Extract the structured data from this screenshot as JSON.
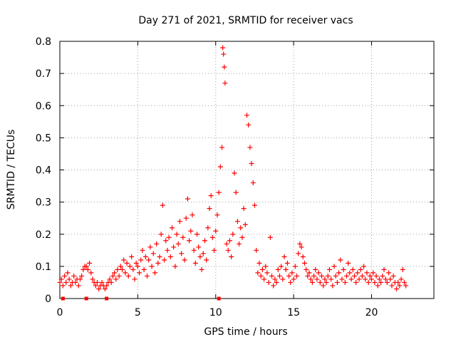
{
  "chart_data": {
    "type": "scatter",
    "title": "Day 271 of 2021, SRMTID for receiver vacs",
    "xlabel": "GPS time / hours",
    "ylabel": "SRMTID / TECUs",
    "xlim": [
      0,
      24
    ],
    "ylim": [
      0,
      0.8
    ],
    "xticks": [
      0,
      5,
      10,
      15,
      20
    ],
    "yticks": [
      0,
      0.1,
      0.2,
      0.3,
      0.4,
      0.5,
      0.6,
      0.7,
      0.8
    ],
    "xtick_labels": [
      "0",
      "5",
      "10",
      "15",
      "20"
    ],
    "ytick_labels": [
      "0",
      "0.1",
      "0.2",
      "0.3",
      "0.4",
      "0.5",
      "0.6",
      "0.7",
      "0.8"
    ],
    "grid": true,
    "marker": "+",
    "color": "#ff0000",
    "series": [
      {
        "name": "SRMTID",
        "points": [
          [
            0.0,
            0.05
          ],
          [
            0.1,
            0.06
          ],
          [
            0.2,
            0.04
          ],
          [
            0.3,
            0.07
          ],
          [
            0.4,
            0.05
          ],
          [
            0.5,
            0.08
          ],
          [
            0.6,
            0.06
          ],
          [
            0.7,
            0.04
          ],
          [
            0.8,
            0.05
          ],
          [
            0.9,
            0.07
          ],
          [
            1.0,
            0.05
          ],
          [
            1.1,
            0.06
          ],
          [
            1.2,
            0.04
          ],
          [
            1.3,
            0.06
          ],
          [
            1.4,
            0.07
          ],
          [
            1.5,
            0.09
          ],
          [
            1.6,
            0.1
          ],
          [
            1.7,
            0.1
          ],
          [
            1.8,
            0.09
          ],
          [
            1.9,
            0.11
          ],
          [
            2.0,
            0.08
          ],
          [
            2.1,
            0.06
          ],
          [
            2.2,
            0.05
          ],
          [
            2.3,
            0.04
          ],
          [
            2.4,
            0.05
          ],
          [
            2.5,
            0.03
          ],
          [
            2.6,
            0.04
          ],
          [
            2.7,
            0.05
          ],
          [
            2.8,
            0.04
          ],
          [
            2.9,
            0.03
          ],
          [
            3.0,
            0.04
          ],
          [
            3.1,
            0.05
          ],
          [
            3.2,
            0.06
          ],
          [
            3.3,
            0.05
          ],
          [
            3.4,
            0.07
          ],
          [
            3.5,
            0.08
          ],
          [
            3.6,
            0.06
          ],
          [
            3.7,
            0.09
          ],
          [
            3.8,
            0.07
          ],
          [
            3.9,
            0.1
          ],
          [
            4.0,
            0.09
          ],
          [
            4.1,
            0.12
          ],
          [
            4.2,
            0.08
          ],
          [
            4.3,
            0.11
          ],
          [
            4.4,
            0.07
          ],
          [
            4.5,
            0.1
          ],
          [
            4.6,
            0.13
          ],
          [
            4.7,
            0.09
          ],
          [
            4.8,
            0.06
          ],
          [
            4.9,
            0.11
          ],
          [
            5.0,
            0.1
          ],
          [
            5.1,
            0.08
          ],
          [
            5.2,
            0.12
          ],
          [
            5.3,
            0.15
          ],
          [
            5.4,
            0.09
          ],
          [
            5.5,
            0.13
          ],
          [
            5.6,
            0.07
          ],
          [
            5.7,
            0.12
          ],
          [
            5.8,
            0.16
          ],
          [
            5.9,
            0.1
          ],
          [
            6.0,
            0.14
          ],
          [
            6.1,
            0.08
          ],
          [
            6.2,
            0.17
          ],
          [
            6.3,
            0.11
          ],
          [
            6.4,
            0.13
          ],
          [
            6.5,
            0.2
          ],
          [
            6.6,
            0.29
          ],
          [
            6.7,
            0.12
          ],
          [
            6.8,
            0.18
          ],
          [
            6.9,
            0.15
          ],
          [
            7.0,
            0.19
          ],
          [
            7.1,
            0.13
          ],
          [
            7.2,
            0.22
          ],
          [
            7.3,
            0.16
          ],
          [
            7.4,
            0.1
          ],
          [
            7.5,
            0.2
          ],
          [
            7.6,
            0.17
          ],
          [
            7.7,
            0.24
          ],
          [
            7.8,
            0.14
          ],
          [
            7.9,
            0.19
          ],
          [
            8.0,
            0.12
          ],
          [
            8.1,
            0.25
          ],
          [
            8.2,
            0.31
          ],
          [
            8.3,
            0.18
          ],
          [
            8.4,
            0.21
          ],
          [
            8.5,
            0.26
          ],
          [
            8.6,
            0.15
          ],
          [
            8.7,
            0.11
          ],
          [
            8.8,
            0.2
          ],
          [
            8.9,
            0.16
          ],
          [
            9.0,
            0.13
          ],
          [
            9.1,
            0.09
          ],
          [
            9.2,
            0.14
          ],
          [
            9.3,
            0.18
          ],
          [
            9.4,
            0.12
          ],
          [
            9.5,
            0.22
          ],
          [
            9.6,
            0.28
          ],
          [
            9.7,
            0.32
          ],
          [
            9.8,
            0.19
          ],
          [
            9.9,
            0.15
          ],
          [
            10.0,
            0.21
          ],
          [
            10.1,
            0.26
          ],
          [
            10.2,
            0.33
          ],
          [
            10.3,
            0.41
          ],
          [
            10.4,
            0.47
          ],
          [
            10.45,
            0.78
          ],
          [
            10.5,
            0.76
          ],
          [
            10.55,
            0.72
          ],
          [
            10.6,
            0.67
          ],
          [
            10.7,
            0.17
          ],
          [
            10.8,
            0.15
          ],
          [
            10.9,
            0.18
          ],
          [
            11.0,
            0.13
          ],
          [
            11.1,
            0.2
          ],
          [
            11.2,
            0.39
          ],
          [
            11.3,
            0.33
          ],
          [
            11.4,
            0.24
          ],
          [
            11.5,
            0.17
          ],
          [
            11.6,
            0.22
          ],
          [
            11.7,
            0.19
          ],
          [
            11.8,
            0.28
          ],
          [
            11.9,
            0.23
          ],
          [
            12.0,
            0.57
          ],
          [
            12.1,
            0.54
          ],
          [
            12.2,
            0.47
          ],
          [
            12.3,
            0.42
          ],
          [
            12.4,
            0.36
          ],
          [
            12.5,
            0.29
          ],
          [
            12.6,
            0.15
          ],
          [
            12.7,
            0.08
          ],
          [
            12.8,
            0.11
          ],
          [
            12.9,
            0.07
          ],
          [
            13.0,
            0.09
          ],
          [
            13.1,
            0.06
          ],
          [
            13.2,
            0.1
          ],
          [
            13.3,
            0.08
          ],
          [
            13.4,
            0.05
          ],
          [
            13.5,
            0.19
          ],
          [
            13.6,
            0.07
          ],
          [
            13.7,
            0.04
          ],
          [
            13.8,
            0.06
          ],
          [
            13.9,
            0.05
          ],
          [
            14.0,
            0.09
          ],
          [
            14.1,
            0.07
          ],
          [
            14.2,
            0.1
          ],
          [
            14.3,
            0.06
          ],
          [
            14.4,
            0.13
          ],
          [
            14.5,
            0.09
          ],
          [
            14.6,
            0.11
          ],
          [
            14.7,
            0.07
          ],
          [
            14.8,
            0.05
          ],
          [
            14.9,
            0.08
          ],
          [
            15.0,
            0.06
          ],
          [
            15.1,
            0.1
          ],
          [
            15.2,
            0.07
          ],
          [
            15.3,
            0.14
          ],
          [
            15.4,
            0.17
          ],
          [
            15.5,
            0.16
          ],
          [
            15.6,
            0.13
          ],
          [
            15.7,
            0.11
          ],
          [
            15.8,
            0.09
          ],
          [
            15.9,
            0.07
          ],
          [
            16.0,
            0.08
          ],
          [
            16.1,
            0.06
          ],
          [
            16.2,
            0.05
          ],
          [
            16.3,
            0.07
          ],
          [
            16.4,
            0.09
          ],
          [
            16.5,
            0.06
          ],
          [
            16.6,
            0.08
          ],
          [
            16.7,
            0.05
          ],
          [
            16.8,
            0.07
          ],
          [
            16.9,
            0.04
          ],
          [
            17.0,
            0.06
          ],
          [
            17.1,
            0.05
          ],
          [
            17.2,
            0.07
          ],
          [
            17.3,
            0.09
          ],
          [
            17.4,
            0.06
          ],
          [
            17.5,
            0.04
          ],
          [
            17.6,
            0.1
          ],
          [
            17.7,
            0.07
          ],
          [
            17.8,
            0.05
          ],
          [
            17.9,
            0.08
          ],
          [
            18.0,
            0.12
          ],
          [
            18.1,
            0.06
          ],
          [
            18.2,
            0.09
          ],
          [
            18.3,
            0.05
          ],
          [
            18.4,
            0.07
          ],
          [
            18.5,
            0.11
          ],
          [
            18.6,
            0.08
          ],
          [
            18.7,
            0.06
          ],
          [
            18.8,
            0.09
          ],
          [
            18.9,
            0.07
          ],
          [
            19.0,
            0.05
          ],
          [
            19.1,
            0.08
          ],
          [
            19.2,
            0.06
          ],
          [
            19.3,
            0.09
          ],
          [
            19.4,
            0.07
          ],
          [
            19.5,
            0.1
          ],
          [
            19.6,
            0.06
          ],
          [
            19.7,
            0.08
          ],
          [
            19.8,
            0.05
          ],
          [
            19.9,
            0.07
          ],
          [
            20.0,
            0.06
          ],
          [
            20.1,
            0.08
          ],
          [
            20.2,
            0.05
          ],
          [
            20.3,
            0.07
          ],
          [
            20.4,
            0.04
          ],
          [
            20.5,
            0.06
          ],
          [
            20.6,
            0.05
          ],
          [
            20.7,
            0.07
          ],
          [
            20.8,
            0.09
          ],
          [
            20.9,
            0.06
          ],
          [
            21.0,
            0.05
          ],
          [
            21.1,
            0.08
          ],
          [
            21.2,
            0.06
          ],
          [
            21.3,
            0.04
          ],
          [
            21.4,
            0.07
          ],
          [
            21.5,
            0.05
          ],
          [
            21.6,
            0.03
          ],
          [
            21.7,
            0.05
          ],
          [
            21.8,
            0.04
          ],
          [
            21.9,
            0.06
          ],
          [
            22.0,
            0.09
          ],
          [
            22.1,
            0.05
          ],
          [
            22.2,
            0.04
          ]
        ]
      }
    ],
    "baseline_markers": [
      0.2,
      1.7,
      3.0,
      10.2
    ]
  }
}
